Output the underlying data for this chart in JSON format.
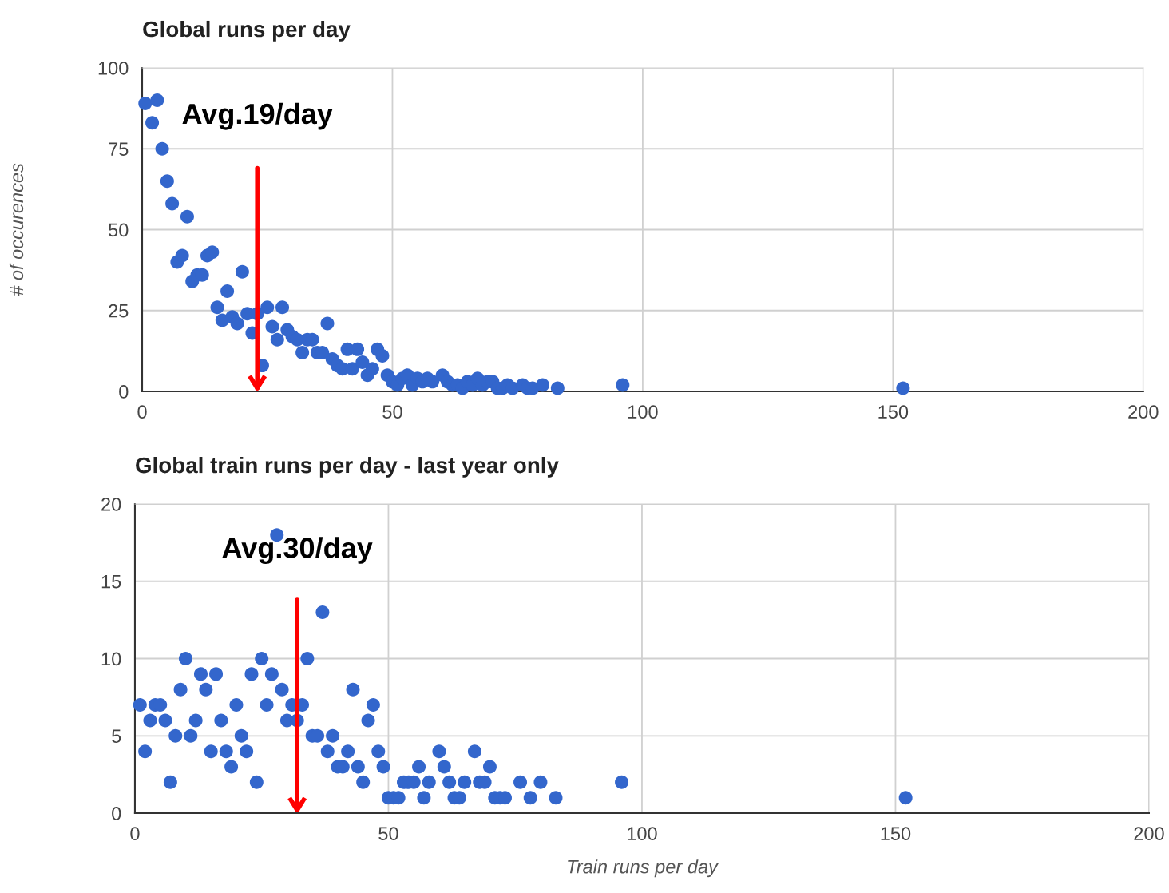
{
  "chart_data": [
    {
      "type": "scatter",
      "title": "Global runs per day",
      "ylabel": "# of occurences",
      "x": [
        0.6,
        2,
        3,
        4,
        5,
        6,
        9,
        7,
        8,
        10,
        11,
        12,
        13,
        14,
        15,
        16,
        17,
        18,
        19,
        20,
        21,
        22,
        23,
        24,
        25,
        26,
        27,
        28,
        29,
        30,
        31,
        32,
        33,
        34,
        35,
        36,
        37,
        38,
        39,
        40,
        41,
        42,
        43,
        44,
        45,
        46,
        47,
        48,
        49,
        50,
        51,
        52,
        53,
        54,
        55,
        56,
        57,
        58,
        60,
        61,
        62,
        63,
        64,
        65,
        66,
        67,
        68,
        69,
        70,
        71,
        72,
        73,
        74,
        76,
        77,
        78,
        80,
        83,
        96,
        152
      ],
      "series": [
        {
          "color": "#3366cc",
          "values": [
            89,
            83,
            90,
            75,
            65,
            58,
            54,
            40,
            42,
            34,
            36,
            36,
            42,
            43,
            26,
            22,
            31,
            23,
            21,
            37,
            24,
            18,
            24,
            8,
            26,
            20,
            16,
            26,
            19,
            17,
            16,
            12,
            16,
            16,
            12,
            12,
            21,
            10,
            8,
            7,
            13,
            7,
            13,
            9,
            5,
            7,
            13,
            11,
            5,
            3,
            2,
            4,
            5,
            2,
            4,
            3,
            4,
            3,
            5,
            3,
            2,
            2,
            1,
            3,
            2,
            4,
            2,
            3,
            3,
            1,
            1,
            2,
            1,
            2,
            1,
            1,
            2,
            1,
            2,
            1
          ]
        }
      ],
      "xlim": [
        0,
        200
      ],
      "xticks": [
        0,
        50,
        100,
        150,
        200
      ],
      "ylim": [
        0,
        100
      ],
      "yticks": [
        0,
        25,
        50,
        75,
        100
      ],
      "grid": true,
      "marker": "circle",
      "legend": false,
      "ref_lines": [
        {
          "axis": "x",
          "value": 23,
          "label": "Avg.19/day",
          "color": "#ff0000"
        }
      ]
    },
    {
      "type": "scatter",
      "title": "Global train runs per day - last year only",
      "xlabel": "Train runs per day",
      "x": [
        1,
        2,
        3,
        4,
        5,
        6,
        7,
        8,
        9,
        10,
        11,
        12,
        13,
        14,
        15,
        16,
        17,
        18,
        19,
        20,
        21,
        22,
        23,
        24,
        25,
        26,
        27,
        28,
        29,
        30,
        31,
        32,
        33,
        34,
        35,
        36,
        37,
        38,
        39,
        40,
        41,
        42,
        43,
        44,
        45,
        46,
        47,
        48,
        49,
        50,
        51,
        52,
        53,
        54,
        55,
        56,
        57,
        58,
        60,
        61,
        62,
        63,
        64,
        65,
        67,
        68,
        69,
        70,
        71,
        72,
        73,
        76,
        78,
        80,
        83,
        96,
        152
      ],
      "series": [
        {
          "color": "#3366cc",
          "values": [
            7,
            4,
            6,
            7,
            7,
            6,
            2,
            5,
            8,
            10,
            5,
            6,
            9,
            8,
            4,
            9,
            6,
            4,
            3,
            7,
            5,
            4,
            9,
            2,
            10,
            7,
            9,
            18,
            8,
            6,
            7,
            6,
            7,
            10,
            5,
            5,
            13,
            4,
            5,
            3,
            3,
            4,
            8,
            3,
            2,
            6,
            7,
            4,
            3,
            1,
            1,
            1,
            2,
            2,
            2,
            3,
            1,
            2,
            4,
            3,
            2,
            1,
            1,
            2,
            4,
            2,
            2,
            3,
            1,
            1,
            1,
            2,
            1,
            2,
            1,
            2,
            1
          ]
        }
      ],
      "xlim": [
        0,
        200
      ],
      "xticks": [
        0,
        50,
        100,
        150,
        200
      ],
      "ylim": [
        0,
        20
      ],
      "yticks": [
        0,
        5,
        10,
        15,
        20
      ],
      "grid": true,
      "marker": "circle",
      "legend": false,
      "ref_lines": [
        {
          "axis": "x",
          "value": 32,
          "label": "Avg.30/day",
          "color": "#ff0000"
        }
      ]
    }
  ]
}
